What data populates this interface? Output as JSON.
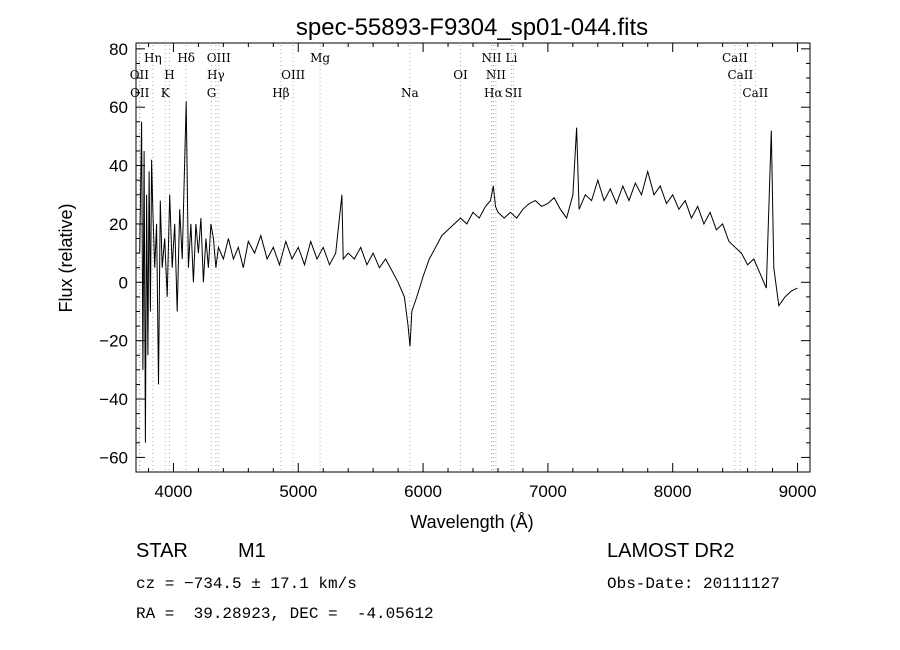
{
  "chart_data": {
    "type": "line",
    "title": "spec-55893-F9304_sp01-044.fits",
    "xlabel": "Wavelength (Å)",
    "ylabel": "Flux (relative)",
    "xlim": [
      3700,
      9100
    ],
    "ylim": [
      -65,
      82
    ],
    "xticks": [
      4000,
      5000,
      6000,
      7000,
      8000,
      9000
    ],
    "yticks": [
      -60,
      -40,
      -20,
      0,
      20,
      40,
      60,
      80
    ],
    "grid": false,
    "line_color": "#000000",
    "marker_color": "#aaaaaa",
    "spectrum": [
      [
        3730,
        10
      ],
      [
        3745,
        55
      ],
      [
        3755,
        -30
      ],
      [
        3765,
        45
      ],
      [
        3775,
        -55
      ],
      [
        3785,
        30
      ],
      [
        3795,
        -25
      ],
      [
        3805,
        38
      ],
      [
        3815,
        -10
      ],
      [
        3825,
        42
      ],
      [
        3835,
        25
      ],
      [
        3850,
        5
      ],
      [
        3865,
        20
      ],
      [
        3880,
        -35
      ],
      [
        3895,
        28
      ],
      [
        3910,
        5
      ],
      [
        3930,
        15
      ],
      [
        3950,
        -5
      ],
      [
        3970,
        30
      ],
      [
        3990,
        5
      ],
      [
        4010,
        20
      ],
      [
        4030,
        -10
      ],
      [
        4050,
        25
      ],
      [
        4070,
        8
      ],
      [
        4102,
        62
      ],
      [
        4120,
        5
      ],
      [
        4140,
        20
      ],
      [
        4160,
        0
      ],
      [
        4180,
        20
      ],
      [
        4200,
        10
      ],
      [
        4220,
        22
      ],
      [
        4240,
        0
      ],
      [
        4260,
        15
      ],
      [
        4280,
        5
      ],
      [
        4300,
        20
      ],
      [
        4320,
        15
      ],
      [
        4340,
        5
      ],
      [
        4360,
        12
      ],
      [
        4400,
        8
      ],
      [
        4440,
        15
      ],
      [
        4480,
        8
      ],
      [
        4520,
        12
      ],
      [
        4560,
        5
      ],
      [
        4600,
        14
      ],
      [
        4650,
        10
      ],
      [
        4700,
        16
      ],
      [
        4750,
        8
      ],
      [
        4800,
        12
      ],
      [
        4850,
        6
      ],
      [
        4900,
        14
      ],
      [
        4950,
        8
      ],
      [
        5000,
        12
      ],
      [
        5050,
        6
      ],
      [
        5100,
        14
      ],
      [
        5150,
        8
      ],
      [
        5200,
        12
      ],
      [
        5250,
        6
      ],
      [
        5300,
        10
      ],
      [
        5350,
        30
      ],
      [
        5360,
        8
      ],
      [
        5400,
        10
      ],
      [
        5450,
        8
      ],
      [
        5500,
        12
      ],
      [
        5550,
        6
      ],
      [
        5600,
        10
      ],
      [
        5650,
        5
      ],
      [
        5700,
        8
      ],
      [
        5750,
        4
      ],
      [
        5800,
        0
      ],
      [
        5850,
        -5
      ],
      [
        5880,
        -15
      ],
      [
        5895,
        -22
      ],
      [
        5910,
        -10
      ],
      [
        5950,
        -5
      ],
      [
        6000,
        2
      ],
      [
        6050,
        8
      ],
      [
        6100,
        12
      ],
      [
        6150,
        16
      ],
      [
        6200,
        18
      ],
      [
        6250,
        20
      ],
      [
        6300,
        22
      ],
      [
        6350,
        20
      ],
      [
        6400,
        24
      ],
      [
        6450,
        22
      ],
      [
        6500,
        26
      ],
      [
        6540,
        28
      ],
      [
        6563,
        33
      ],
      [
        6580,
        26
      ],
      [
        6600,
        24
      ],
      [
        6650,
        22
      ],
      [
        6700,
        24
      ],
      [
        6750,
        22
      ],
      [
        6800,
        25
      ],
      [
        6850,
        27
      ],
      [
        6900,
        28
      ],
      [
        6950,
        26
      ],
      [
        7000,
        27
      ],
      [
        7050,
        29
      ],
      [
        7100,
        25
      ],
      [
        7150,
        22
      ],
      [
        7200,
        30
      ],
      [
        7230,
        53
      ],
      [
        7250,
        25
      ],
      [
        7300,
        30
      ],
      [
        7350,
        28
      ],
      [
        7400,
        35
      ],
      [
        7450,
        28
      ],
      [
        7500,
        32
      ],
      [
        7550,
        27
      ],
      [
        7600,
        33
      ],
      [
        7650,
        28
      ],
      [
        7700,
        34
      ],
      [
        7750,
        30
      ],
      [
        7800,
        38
      ],
      [
        7850,
        30
      ],
      [
        7900,
        33
      ],
      [
        7950,
        27
      ],
      [
        8000,
        30
      ],
      [
        8050,
        25
      ],
      [
        8100,
        28
      ],
      [
        8150,
        22
      ],
      [
        8200,
        26
      ],
      [
        8250,
        20
      ],
      [
        8300,
        24
      ],
      [
        8350,
        18
      ],
      [
        8400,
        20
      ],
      [
        8450,
        14
      ],
      [
        8500,
        12
      ],
      [
        8550,
        10
      ],
      [
        8600,
        6
      ],
      [
        8650,
        8
      ],
      [
        8700,
        3
      ],
      [
        8750,
        -2
      ],
      [
        8790,
        52
      ],
      [
        8810,
        5
      ],
      [
        8850,
        -8
      ],
      [
        8900,
        -5
      ],
      [
        8950,
        -3
      ],
      [
        9000,
        -2
      ]
    ],
    "lines": [
      {
        "name": "OII",
        "x": 3727,
        "row": 2
      },
      {
        "name": "OII",
        "x": 3730,
        "row": 3
      },
      {
        "name": "Hη",
        "x": 3835,
        "row": 1
      },
      {
        "name": "H",
        "x": 3968,
        "row": 2
      },
      {
        "name": "K",
        "x": 3934,
        "row": 3
      },
      {
        "name": "Hδ",
        "x": 4102,
        "row": 1
      },
      {
        "name": "OIII",
        "x": 4363,
        "row": 1
      },
      {
        "name": "Hγ",
        "x": 4340,
        "row": 2
      },
      {
        "name": "G",
        "x": 4305,
        "row": 3
      },
      {
        "name": "OIII",
        "x": 4959,
        "row": 2
      },
      {
        "name": "Hβ",
        "x": 4861,
        "row": 3
      },
      {
        "name": "Mg",
        "x": 5175,
        "row": 1
      },
      {
        "name": "Na",
        "x": 5894,
        "row": 3
      },
      {
        "name": "OI",
        "x": 6300,
        "row": 2
      },
      {
        "name": "NII",
        "x": 6548,
        "row": 1
      },
      {
        "name": "NII",
        "x": 6583,
        "row": 2
      },
      {
        "name": "Hα",
        "x": 6563,
        "row": 3
      },
      {
        "name": "Li",
        "x": 6708,
        "row": 1
      },
      {
        "name": "SII",
        "x": 6724,
        "row": 3
      },
      {
        "name": "CaII",
        "x": 8498,
        "row": 1
      },
      {
        "name": "CaII",
        "x": 8542,
        "row": 2
      },
      {
        "name": "CaII",
        "x": 8662,
        "row": 3
      }
    ]
  },
  "info": {
    "class": "STAR",
    "subclass": "M1",
    "survey": "LAMOST DR2",
    "cz": "cz = −734.5 ± 17.1 km/s",
    "obs_date": "Obs-Date: 20111127",
    "radec": "RA =  39.28923, DEC =  -4.05612"
  }
}
